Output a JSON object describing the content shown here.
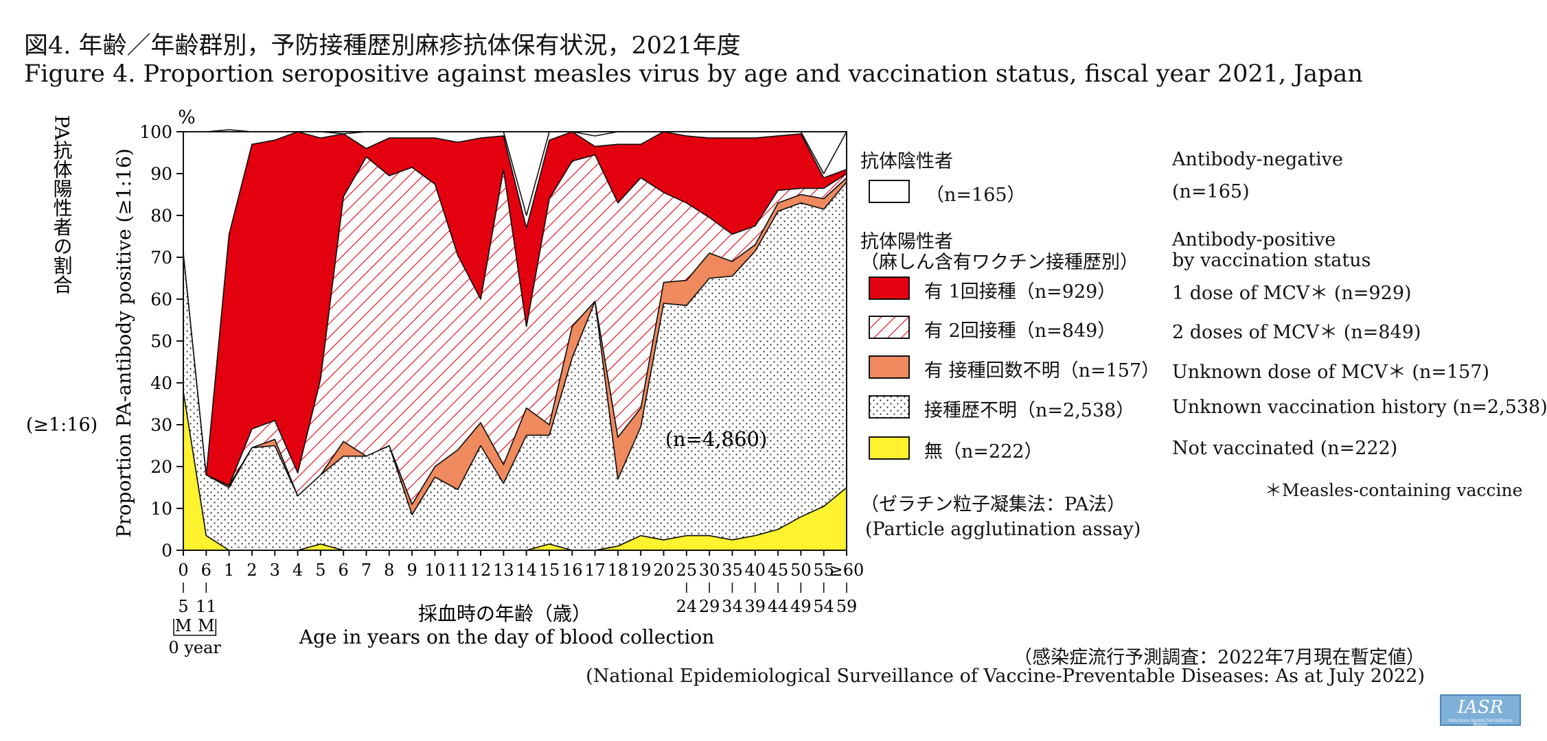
{
  "title_ja": "図4. 年齢／年齢群別，予防接種歴別麻疹抗体保有状況，2021年度",
  "title_en": "Figure 4. Proportion seropositive against measles virus by age and vaccination status, fiscal year 2021, Japan",
  "colors": {
    "negative": "#ffffff",
    "one_dose": "#e3000f",
    "two_doses_hatch": "#e3000f",
    "unknown_dose": "#ee8a5e",
    "unknown_history_dots": "#222222",
    "not_vaccinated": "#fff22e"
  },
  "chart_data": {
    "type": "area",
    "stacked": true,
    "ylabel_unit": "%",
    "ylabel_en": "Proportion PA-antibody positive (≥1:16)",
    "ylabel_ja": "PA抗体陽性者の割合",
    "ylabel_ja_threshold": "(≥1:16)",
    "xlabel_ja": "採血時の年齢（歳）",
    "xlabel_en": "Age in years on the day of blood collection",
    "ylim": [
      0,
      100
    ],
    "yticks": [
      0,
      10,
      20,
      30,
      40,
      50,
      60,
      70,
      80,
      90,
      100
    ],
    "x_tick_labels": [
      "0",
      "6",
      "1",
      "2",
      "3",
      "4",
      "5",
      "6",
      "7",
      "8",
      "9",
      "10",
      "11",
      "12",
      "13",
      "14",
      "15",
      "16",
      "17",
      "18",
      "19",
      "20",
      "25",
      "30",
      "35",
      "40",
      "45",
      "50",
      "55",
      "≥60"
    ],
    "x_group_lower": [
      "5",
      "11"
    ],
    "x_group_units": [
      "M",
      "M"
    ],
    "x_group_caption": "0 year",
    "x_range_upper": [
      "24",
      "29",
      "34",
      "39",
      "44",
      "49",
      "54",
      "59"
    ],
    "total_n": "(n=4,860)",
    "series": [
      {
        "name": "無（n=222）",
        "values": [
          38,
          3.5,
          0,
          0,
          0,
          0,
          1.5,
          0,
          0,
          0,
          0,
          0,
          0,
          0,
          0,
          0,
          1.5,
          0,
          0,
          1,
          3.5,
          2.5,
          3.5,
          3.5,
          2.5,
          3.5,
          5,
          8,
          10.5,
          15
        ]
      },
      {
        "name": "接種歴不明（n=2,538）",
        "values": [
          33,
          14.5,
          15,
          24.5,
          25,
          13,
          16.5,
          22.5,
          22.5,
          25,
          8.5,
          17.5,
          14.5,
          25,
          16,
          27.5,
          26,
          46,
          59.5,
          16,
          26,
          56.5,
          55,
          61.5,
          63,
          68,
          76,
          75,
          71,
          73
        ]
      },
      {
        "name": "有 接種回数不明（n=157）",
        "values": [
          0,
          0,
          0.5,
          0,
          1.5,
          0,
          0,
          3.5,
          0,
          0,
          2.5,
          2.5,
          9.5,
          5.5,
          4.5,
          6.5,
          2.5,
          7.5,
          0,
          10,
          4.5,
          5,
          6,
          6,
          3.5,
          1.5,
          2,
          2,
          2.5,
          1
        ]
      },
      {
        "name": "有 2回接種（n=849）",
        "values": [
          0,
          0,
          0,
          4.5,
          4.5,
          5.5,
          23,
          58.5,
          71.5,
          64.5,
          80.5,
          67.5,
          46.5,
          29.5,
          70.5,
          19.5,
          54,
          39.5,
          35,
          56,
          55,
          21.5,
          18.5,
          8.5,
          6.5,
          4.5,
          3,
          1.5,
          2.5,
          1
        ]
      },
      {
        "name": "有 1回接種（n=929）",
        "values": [
          0,
          0,
          60,
          68,
          67,
          81.5,
          57.5,
          15,
          2,
          9,
          7,
          11,
          27,
          38.5,
          8,
          23.5,
          14,
          7,
          2,
          14,
          8,
          14.5,
          16,
          19,
          23,
          21,
          13,
          13,
          2.5,
          1
        ]
      },
      {
        "name": "抗体陰性者（n=165）",
        "values": [
          29,
          82,
          25,
          3,
          2,
          0,
          1.5,
          0,
          4,
          1.5,
          1.5,
          1.5,
          2.5,
          1.5,
          1,
          3,
          2,
          0,
          2.5,
          3,
          3,
          0,
          1,
          1.5,
          1.5,
          1.5,
          1,
          0.5,
          1,
          9
        ]
      }
    ]
  },
  "legend": {
    "negative_header_ja": "抗体陰性者",
    "negative_header_en": "Antibody-negative",
    "negative_n_ja": "（n=165）",
    "negative_n_en": "(n=165)",
    "positive_header_ja_1": "抗体陽性者",
    "positive_header_ja_2": "（麻しん含有ワクチン接種歴別）",
    "positive_header_en_1": "Antibody-positive",
    "positive_header_en_2": "by vaccination status",
    "items": [
      {
        "ja": "有 1回接種（n=929）",
        "en": "1 dose of MCV＊ (n=929)"
      },
      {
        "ja": "有 2回接種（n=849）",
        "en": "2 doses of MCV＊ (n=849)"
      },
      {
        "ja": "有 接種回数不明（n=157）",
        "en": "Unknown dose of MCV＊ (n=157)"
      },
      {
        "ja": "接種歴不明（n=2,538）",
        "en": "Unknown vaccination history  (n=2,538)"
      },
      {
        "ja": "無（n=222）",
        "en": "Not vaccinated (n=222)"
      }
    ],
    "footnote": "＊Measles-containing vaccine",
    "assay_ja": "（ゼラチン粒子凝集法：PA法）",
    "assay_en": "(Particle agglutination assay)"
  },
  "source_ja": "（感染症流行予測調査：2022年7月現在暫定値）",
  "source_en": "(National Epidemiological Surveillance of Vaccine-Preventable Diseases: As at July 2022)",
  "logo_text": "IASR",
  "logo_subtext": "Infectious Agents Surveillance Report"
}
